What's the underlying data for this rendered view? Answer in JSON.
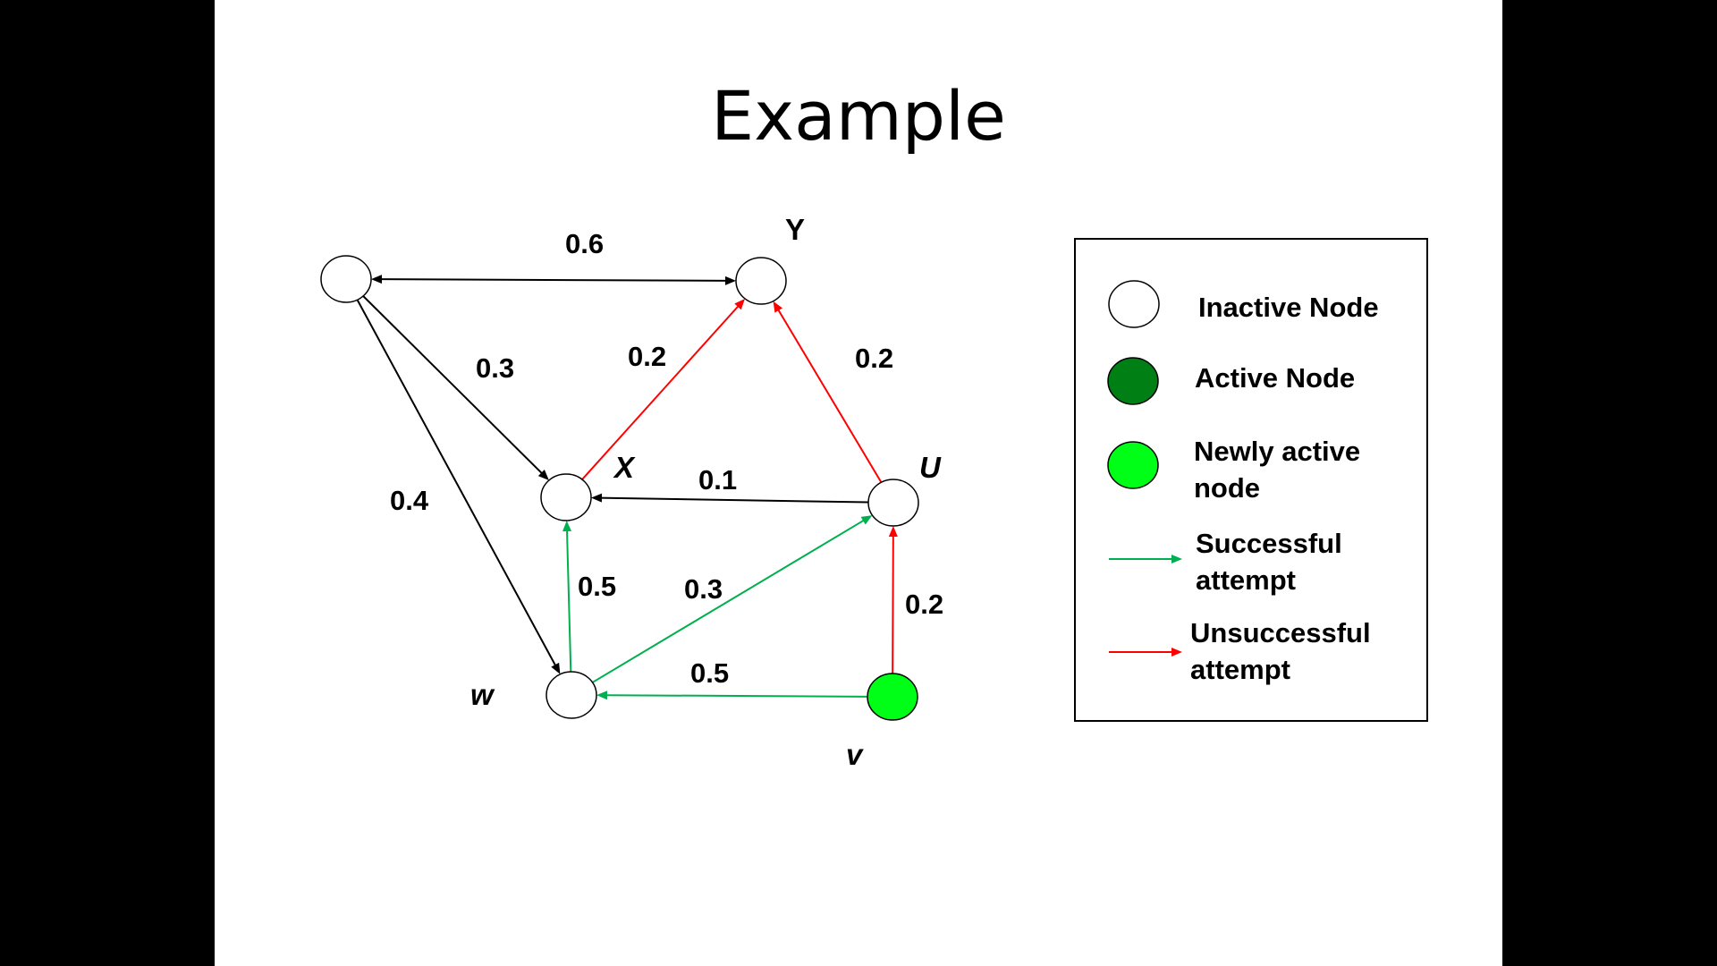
{
  "title": "Example",
  "colors": {
    "inactive_fill": "#ffffff",
    "active_fill": "#007f14",
    "newly_active_fill": "#00ff17",
    "successful": "#00b050",
    "unsuccessful": "#ff0000",
    "neutral": "#000000"
  },
  "nodes": [
    {
      "id": "top-left",
      "label": "",
      "state": "inactive"
    },
    {
      "id": "y",
      "label": "Y",
      "state": "inactive"
    },
    {
      "id": "x",
      "label": "X",
      "state": "inactive"
    },
    {
      "id": "u",
      "label": "U",
      "state": "inactive"
    },
    {
      "id": "w",
      "label": "w",
      "state": "inactive"
    },
    {
      "id": "v",
      "label": "v",
      "state": "newly_active"
    }
  ],
  "edges": [
    {
      "from": "top-left",
      "to": "y",
      "weight": "0.6",
      "status": "neutral",
      "bidirectional": true
    },
    {
      "from": "top-left",
      "to": "x",
      "weight": "0.3",
      "status": "neutral"
    },
    {
      "from": "top-left",
      "to": "w",
      "weight": "0.4",
      "status": "neutral"
    },
    {
      "from": "x",
      "to": "y",
      "weight": "0.2",
      "status": "unsuccessful"
    },
    {
      "from": "u",
      "to": "y",
      "weight": "0.2",
      "status": "unsuccessful"
    },
    {
      "from": "u",
      "to": "x",
      "weight": "0.1",
      "status": "neutral"
    },
    {
      "from": "w",
      "to": "x",
      "weight": "0.5",
      "status": "successful"
    },
    {
      "from": "w",
      "to": "u",
      "weight": "0.3",
      "status": "successful"
    },
    {
      "from": "v",
      "to": "u",
      "weight": "0.2",
      "status": "unsuccessful"
    },
    {
      "from": "v",
      "to": "w",
      "weight": "0.5",
      "status": "successful"
    }
  ],
  "legend": {
    "items": [
      {
        "kind": "inactive",
        "label": "Inactive Node"
      },
      {
        "kind": "active",
        "label": "Active Node"
      },
      {
        "kind": "newly_active",
        "label": "Newly active node"
      },
      {
        "kind": "successful",
        "label": "Successful attempt"
      },
      {
        "kind": "unsuccessful",
        "label": "Unsuccessful attempt"
      }
    ]
  }
}
